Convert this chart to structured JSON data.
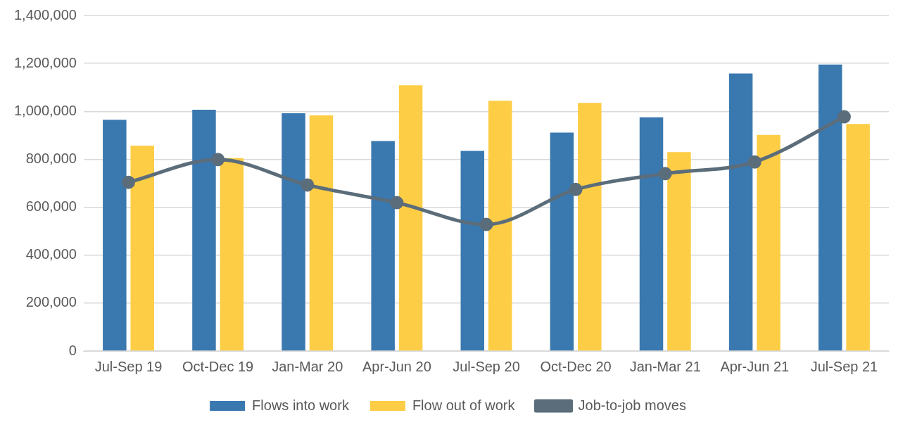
{
  "chart_data": {
    "type": "bar",
    "categories": [
      "Jul-Sep 19",
      "Oct-Dec 19",
      "Jan-Mar 20",
      "Apr-Jun 20",
      "Jul-Sep 20",
      "Oct-Dec 20",
      "Jan-Mar 21",
      "Apr-Jun 21",
      "Jul-Sep 21"
    ],
    "series": [
      {
        "name": "Flows into work",
        "color": "#3a78b0",
        "values": [
          965000,
          1007000,
          992000,
          876000,
          835000,
          911000,
          975000,
          1158000,
          1195000
        ]
      },
      {
        "name": "Flow out of work",
        "color": "#fdcd45",
        "values": [
          857000,
          805000,
          983000,
          1109000,
          1044000,
          1035000,
          830000,
          902000,
          947000
        ]
      },
      {
        "name": "Job-to-job moves",
        "type": "line",
        "color": "#5b6d7a",
        "values": [
          704000,
          799000,
          693000,
          619000,
          528000,
          674000,
          740000,
          789000,
          977000
        ]
      }
    ],
    "ylim": [
      0,
      1400000
    ],
    "yticks": [
      0,
      {
        "value": 200000,
        "label": "200,000"
      },
      {
        "value": 400000,
        "label": "400,000"
      },
      {
        "value": 600000,
        "label": "600,000"
      },
      {
        "value": 800000,
        "label": "800,000"
      },
      {
        "value": 1000000,
        "label": "1,000,000"
      },
      {
        "value": 1200000,
        "label": "1,200,000"
      },
      {
        "value": 1400000,
        "label": "1,400,000"
      }
    ],
    "grid": "y",
    "legend": "bottom",
    "marker": "circle"
  }
}
